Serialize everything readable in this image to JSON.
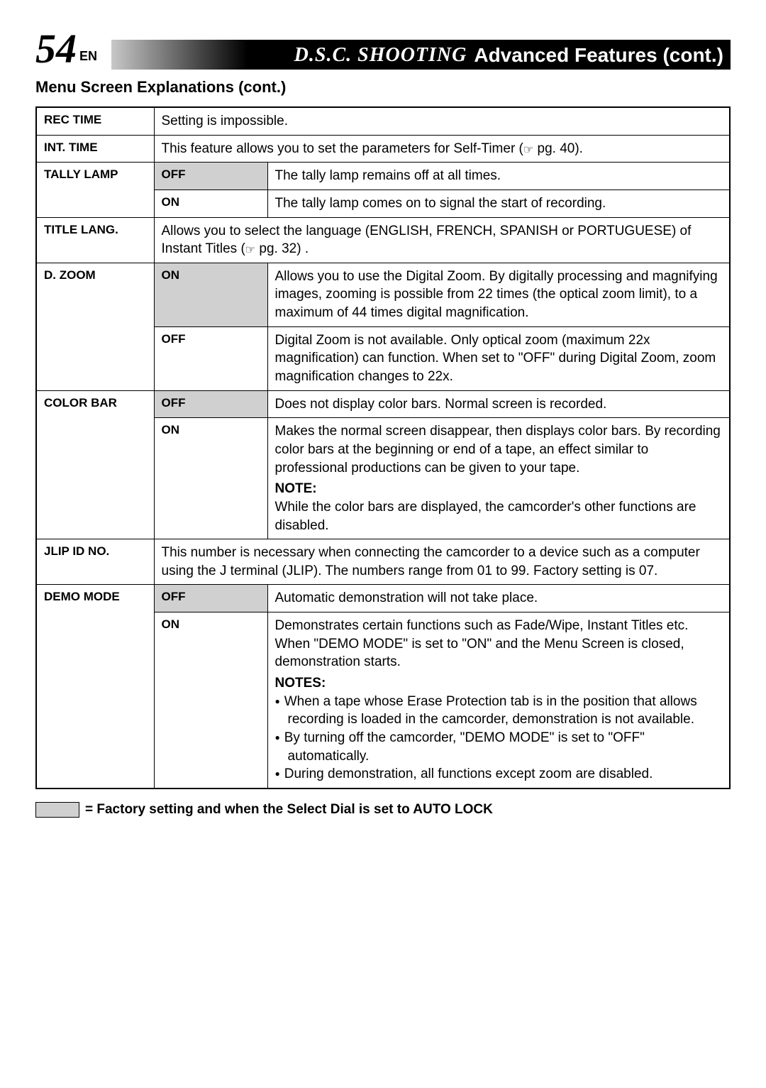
{
  "page": {
    "number": "54",
    "lang": "EN"
  },
  "header": {
    "title_italic": "D.S.C.  SHOOTING",
    "title_rest": "Advanced Features (cont.)"
  },
  "subtitle": "Menu Screen Explanations (cont.)",
  "rows": {
    "rec_time": {
      "label": "REC TIME",
      "desc": "Setting is impossible."
    },
    "int_time": {
      "label": "INT. TIME",
      "desc_pre": "This feature allows you to set the parameters for Self-Timer (",
      "desc_ref": "☞",
      "desc_post": " pg. 40)."
    },
    "tally_lamp": {
      "label": "TALLY LAMP",
      "off": {
        "opt": "OFF",
        "desc": "The tally lamp remains off at all times."
      },
      "on": {
        "opt": "ON",
        "desc": "The tally lamp comes on to signal the start of recording."
      }
    },
    "title_lang": {
      "label": "TITLE LANG.",
      "desc_pre": "Allows you to select the language (ENGLISH, FRENCH, SPANISH or PORTUGUESE) of Instant Titles (",
      "desc_ref": "☞",
      "desc_post": " pg. 32) ."
    },
    "d_zoom": {
      "label": "D. ZOOM",
      "on": {
        "opt": "ON",
        "desc": "Allows you to use the Digital Zoom. By digitally processing and magnifying images, zooming is possible from 22 times (the optical zoom limit), to a maximum of 44 times digital magnification."
      },
      "off": {
        "opt": "OFF",
        "desc": "Digital Zoom is not available. Only optical zoom (maximum 22x magnification) can function. When set to \"OFF\" during Digital Zoom, zoom magnification changes to 22x."
      }
    },
    "color_bar": {
      "label": "COLOR BAR",
      "off": {
        "opt": "OFF",
        "desc": "Does not display color bars. Normal screen is recorded."
      },
      "on": {
        "opt": "ON",
        "desc": "Makes the normal screen disappear, then displays color bars. By recording color bars at the beginning or end of a tape, an effect similar to professional productions can be given to your tape.",
        "note_head": "NOTE:",
        "note": "While the color bars are displayed, the camcorder's other functions are disabled."
      }
    },
    "jlip": {
      "label": "JLIP ID NO.",
      "desc": "This number is necessary when connecting the camcorder to a device such as a computer using the J terminal (JLIP). The numbers range from 01 to 99. Factory setting is 07."
    },
    "demo_mode": {
      "label": "DEMO MODE",
      "off": {
        "opt": "OFF",
        "desc": "Automatic demonstration will not take place."
      },
      "on": {
        "opt": "ON",
        "desc": "Demonstrates certain functions such as Fade/Wipe, Instant Titles etc. When \"DEMO MODE\" is set to \"ON\" and the Menu Screen is closed, demonstration starts.",
        "notes_head": "NOTES:",
        "notes": [
          "When a tape whose Erase Protection tab is in the position that allows recording is loaded in the camcorder, demonstration is not available.",
          "By turning off the camcorder, \"DEMO MODE\" is set to \"OFF\" automatically.",
          "During demonstration, all functions except zoom are disabled."
        ]
      }
    }
  },
  "legend": "= Factory setting and when the Select Dial is set to AUTO LOCK"
}
